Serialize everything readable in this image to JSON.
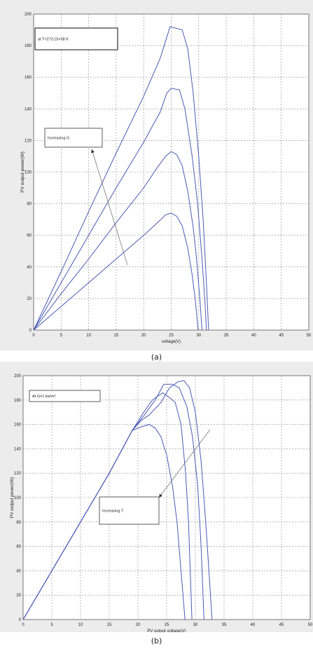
{
  "chart_data": [
    {
      "type": "line",
      "panel": "a",
      "caption": "(a)",
      "xlabel": "voltage(V)",
      "ylabel": "PV output power(W)",
      "xlim": [
        0,
        50
      ],
      "ylim": [
        0,
        200
      ],
      "xticks": [
        "0",
        "5",
        "10",
        "15",
        "20",
        "25",
        "30",
        "35",
        "40",
        "45",
        "50"
      ],
      "yticks": [
        "0",
        "20",
        "40",
        "60",
        "80",
        "100",
        "120",
        "140",
        "160",
        "180",
        "200"
      ],
      "grid": true,
      "annotations": [
        {
          "text": "at T=273.15+58 K"
        },
        {
          "text": "Increasing G"
        }
      ],
      "series": [
        {
          "points": [
            [
              0,
              0
            ],
            [
              5,
              37
            ],
            [
              10,
              75
            ],
            [
              15,
              112
            ],
            [
              20,
              148
            ],
            [
              23,
              172
            ],
            [
              24,
              183
            ],
            [
              24.8,
              192
            ],
            [
              27,
              190
            ],
            [
              28,
              178
            ],
            [
              29,
              150
            ],
            [
              30,
              110
            ],
            [
              30.8,
              70
            ],
            [
              31.4,
              30
            ],
            [
              31.8,
              0
            ]
          ]
        },
        {
          "points": [
            [
              0,
              0
            ],
            [
              5,
              30
            ],
            [
              10,
              60
            ],
            [
              15,
              90
            ],
            [
              20,
              119
            ],
            [
              23,
              138
            ],
            [
              24.2,
              150
            ],
            [
              25,
              153
            ],
            [
              26.5,
              152
            ],
            [
              27.5,
              140
            ],
            [
              28.8,
              110
            ],
            [
              29.8,
              80
            ],
            [
              30.6,
              45
            ],
            [
              31.1,
              20
            ],
            [
              31.4,
              0
            ]
          ]
        },
        {
          "points": [
            [
              0,
              0
            ],
            [
              5,
              23
            ],
            [
              10,
              45
            ],
            [
              15,
              68
            ],
            [
              20,
              90
            ],
            [
              22.5,
              103
            ],
            [
              24,
              110
            ],
            [
              25,
              113
            ],
            [
              26,
              111
            ],
            [
              27,
              104
            ],
            [
              28,
              88
            ],
            [
              29,
              65
            ],
            [
              29.6,
              45
            ],
            [
              30.2,
              20
            ],
            [
              30.6,
              0
            ]
          ]
        },
        {
          "points": [
            [
              0,
              0
            ],
            [
              5,
              15
            ],
            [
              10,
              30
            ],
            [
              15,
              45
            ],
            [
              20,
              60
            ],
            [
              22.5,
              68
            ],
            [
              24,
              73
            ],
            [
              25,
              74
            ],
            [
              26,
              72
            ],
            [
              27,
              66
            ],
            [
              28,
              52
            ],
            [
              28.8,
              35
            ],
            [
              29.4,
              18
            ],
            [
              29.9,
              0
            ]
          ]
        }
      ]
    },
    {
      "type": "line",
      "panel": "b",
      "caption": "(b)",
      "xlabel": "PV output voltage(V)",
      "ylabel": "PV output power(W)",
      "xlim": [
        0,
        50
      ],
      "ylim": [
        0,
        200
      ],
      "xticks": [
        "0",
        "5",
        "10",
        "15",
        "20",
        "25",
        "30",
        "35",
        "40",
        "45",
        "50"
      ],
      "yticks": [
        "0",
        "20",
        "40",
        "60",
        "80",
        "100",
        "120",
        "140",
        "160",
        "180",
        "200"
      ],
      "grid": true,
      "annotations": [
        {
          "text": "At G=1 kw/m²"
        },
        {
          "text": "Increasing T"
        }
      ],
      "series": [
        {
          "points": [
            [
              0,
              0
            ],
            [
              5,
              40
            ],
            [
              10,
              80
            ],
            [
              15,
              120
            ],
            [
              19,
              155
            ],
            [
              20.5,
              163
            ],
            [
              22,
              168
            ],
            [
              24,
              178
            ],
            [
              25.5,
              190
            ],
            [
              27,
              195
            ],
            [
              28,
              196
            ],
            [
              29,
              190
            ],
            [
              30,
              170
            ],
            [
              31,
              130
            ],
            [
              31.8,
              80
            ],
            [
              32.5,
              30
            ],
            [
              32.9,
              0
            ]
          ]
        },
        {
          "points": [
            [
              0,
              0
            ],
            [
              5,
              40
            ],
            [
              10,
              80
            ],
            [
              15,
              120
            ],
            [
              19,
              155
            ],
            [
              21,
              167
            ],
            [
              23,
              180
            ],
            [
              24.5,
              193
            ],
            [
              26,
              193
            ],
            [
              27.2,
              190
            ],
            [
              28.5,
              175
            ],
            [
              29.5,
              150
            ],
            [
              30.4,
              110
            ],
            [
              31,
              60
            ],
            [
              31.5,
              0
            ]
          ]
        },
        {
          "points": [
            [
              0,
              0
            ],
            [
              5,
              40
            ],
            [
              10,
              80
            ],
            [
              15,
              120
            ],
            [
              19,
              155
            ],
            [
              21,
              170
            ],
            [
              22.5,
              180
            ],
            [
              24.3,
              186
            ],
            [
              25.5,
              182
            ],
            [
              26.5,
              178
            ],
            [
              27.5,
              160
            ],
            [
              28.3,
              120
            ],
            [
              28.8,
              80
            ],
            [
              29.4,
              0
            ]
          ]
        },
        {
          "points": [
            [
              0,
              0
            ],
            [
              5,
              40
            ],
            [
              10,
              80
            ],
            [
              15,
              120
            ],
            [
              19,
              155
            ],
            [
              20.5,
              158
            ],
            [
              22,
              160
            ],
            [
              23,
              157
            ],
            [
              24,
              150
            ],
            [
              25,
              135
            ],
            [
              26,
              110
            ],
            [
              26.8,
              80
            ],
            [
              27.5,
              40
            ],
            [
              28.2,
              0
            ]
          ]
        }
      ],
      "arrow": {
        "from": [
          33,
          155
        ],
        "to": [
          24,
          95
        ]
      }
    }
  ],
  "colors": {
    "line": "#4a5bb5",
    "grid": "#8a8a8a",
    "panel_bg": "#ececec",
    "plot_bg": "#ffffff",
    "arrow": "#777777"
  }
}
